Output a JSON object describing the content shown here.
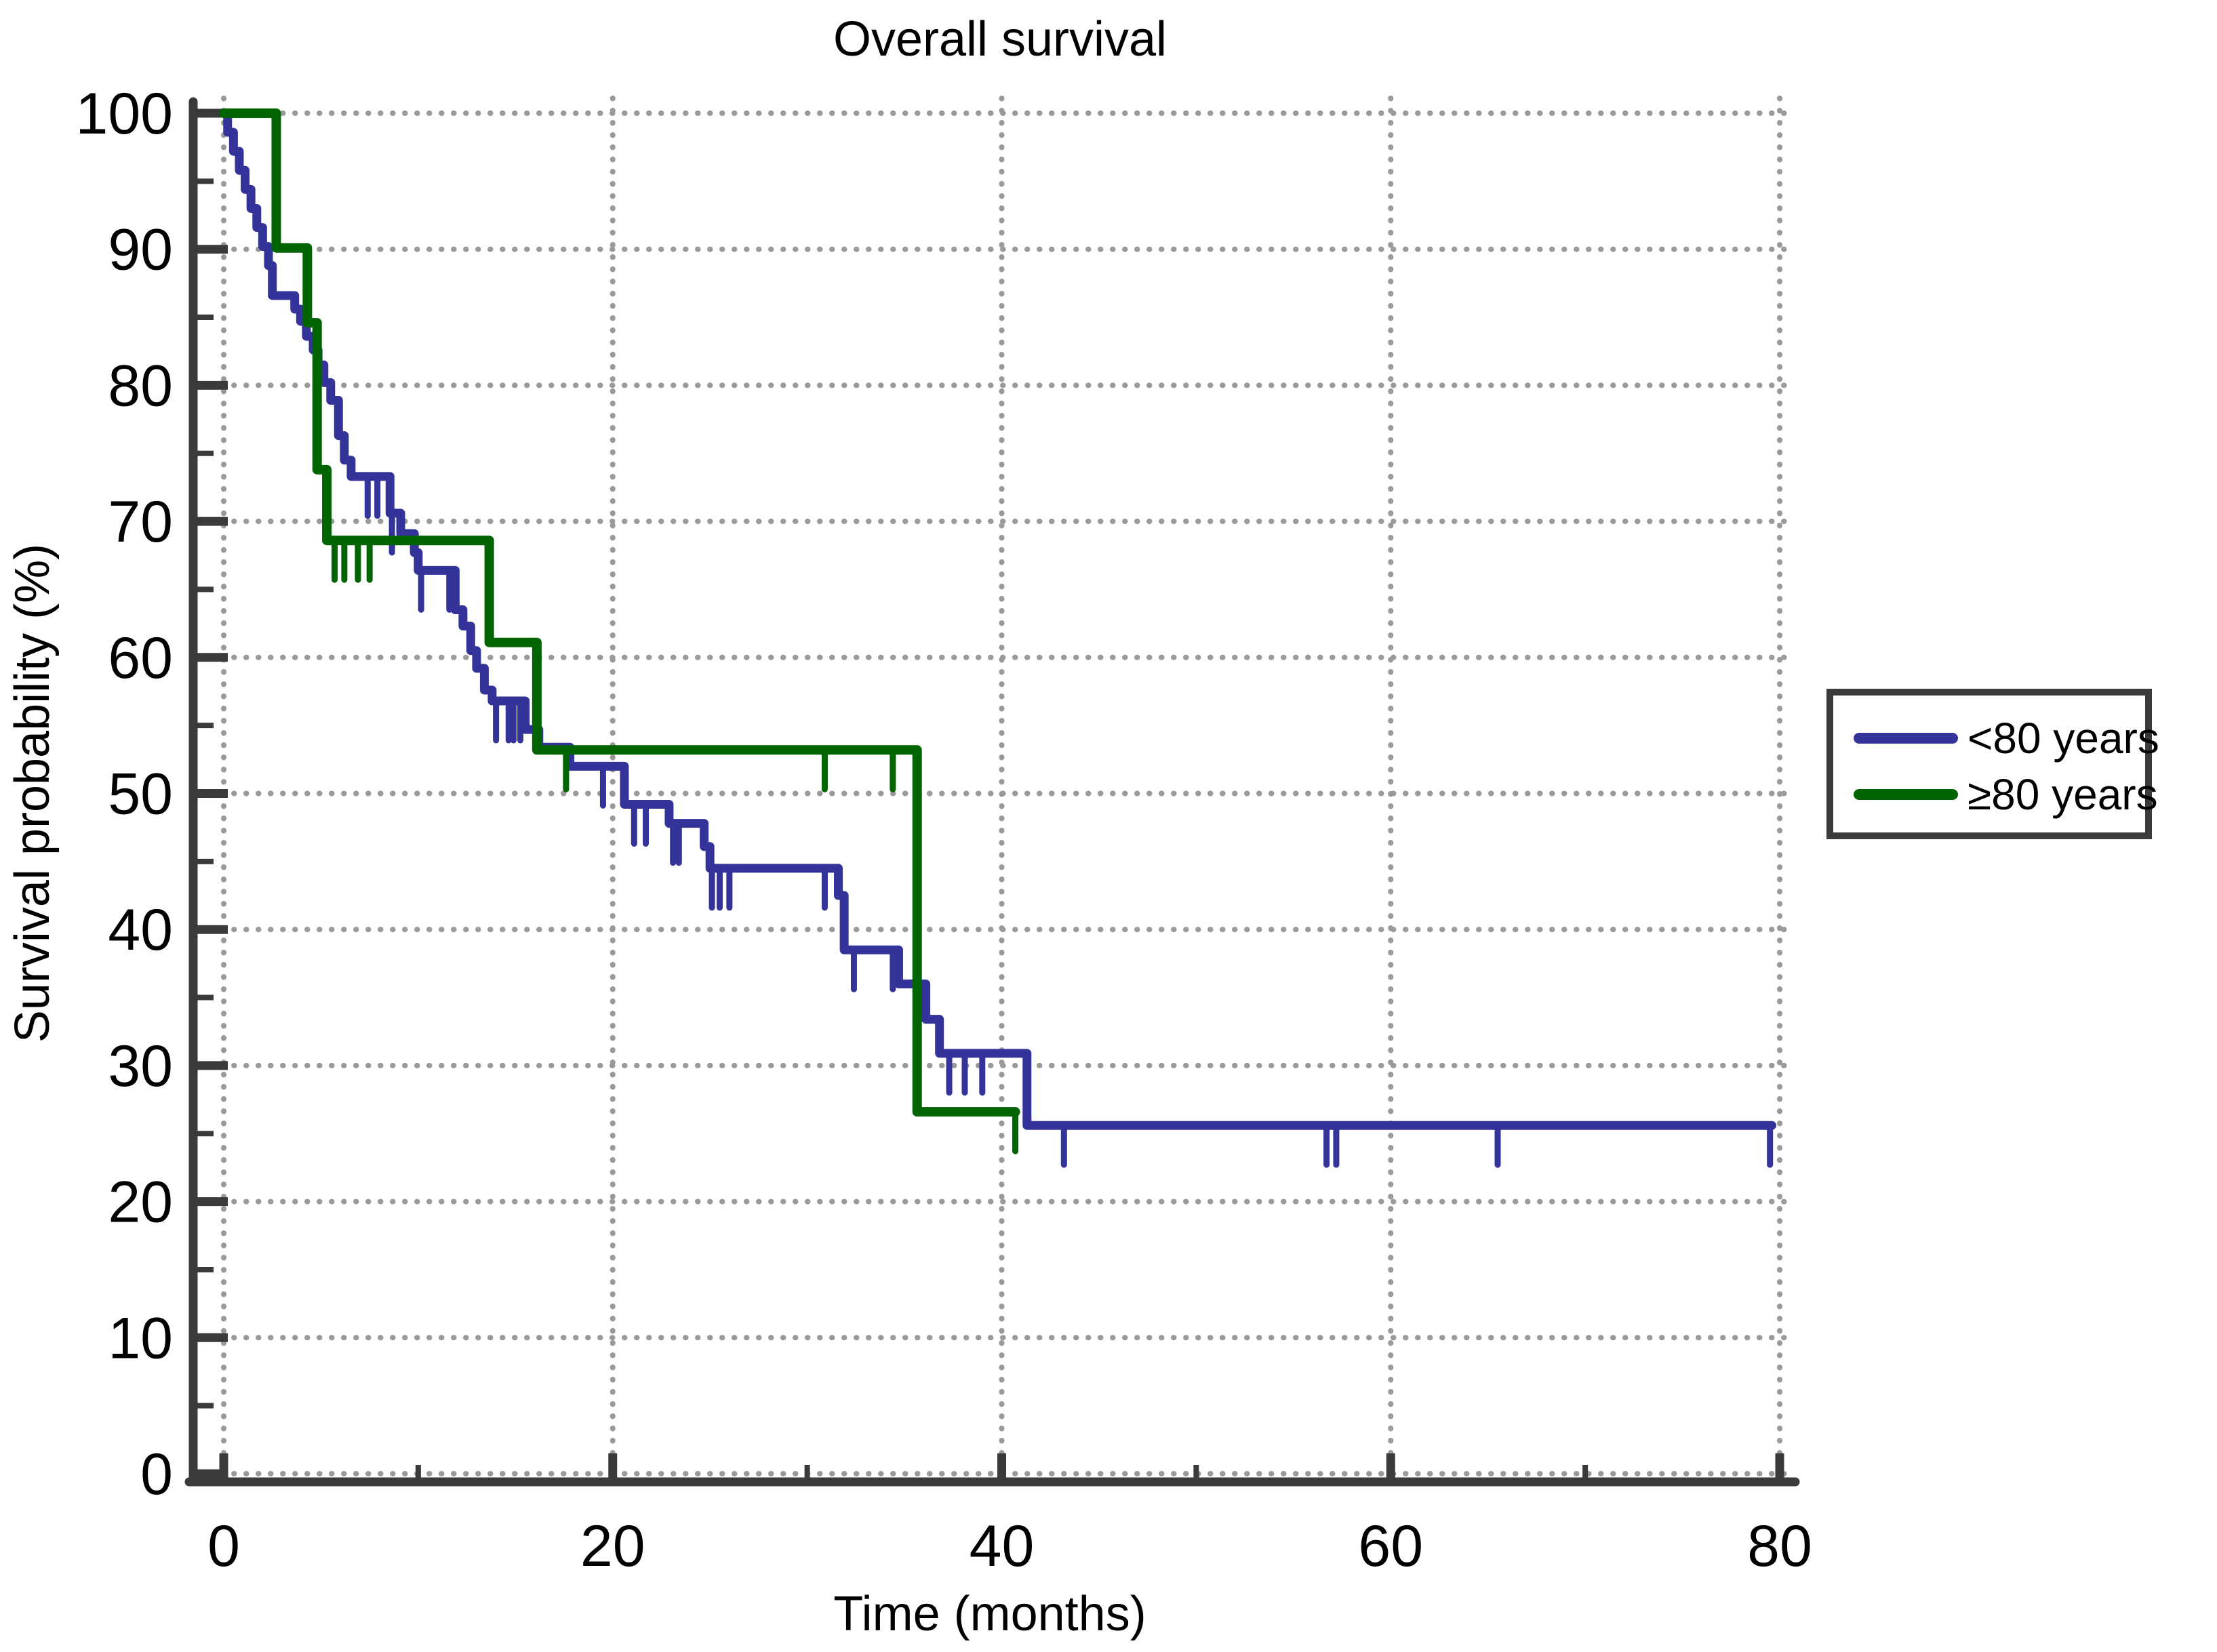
{
  "title": "Overall survival",
  "axes": {
    "x": {
      "label": "Time (months)",
      "min": 0,
      "max": 80,
      "major_ticks": [
        0,
        20,
        40,
        60,
        80
      ],
      "minor_ticks": [
        10,
        30,
        50,
        70
      ]
    },
    "y": {
      "label": "Survival probability (%)",
      "min": 0,
      "max": 100,
      "major_ticks": [
        100,
        90,
        80,
        70,
        60,
        50,
        40,
        30,
        20,
        10,
        0
      ],
      "minor_ticks": [
        95,
        85,
        75,
        65,
        55,
        45,
        35,
        25,
        15,
        5
      ]
    }
  },
  "legend": {
    "entries": [
      {
        "label": "<80 years",
        "color": "#333399"
      },
      {
        "label": "≥80 years",
        "color": "#006400"
      }
    ]
  },
  "colors": {
    "blue_series": "#333399",
    "green_series": "#006400",
    "axis": "#3a3a3a",
    "grid": "#9a9a9a",
    "legend_border": "#3a3a3a",
    "background": "#ffffff"
  },
  "chart_data": {
    "type": "line",
    "subtype": "kaplan-meier-step",
    "title": "Overall survival",
    "xlabel": "Time (months)",
    "ylabel": "Survival probability (%)",
    "xlim": [
      0,
      80
    ],
    "ylim": [
      0,
      100
    ],
    "grid": "dotted",
    "legend_position": "right",
    "series": [
      {
        "name": "<80 years",
        "color": "#333399",
        "steps": [
          [
            0,
            100
          ],
          [
            0.2,
            98.6
          ],
          [
            0.5,
            97.2
          ],
          [
            0.8,
            95.8
          ],
          [
            1.1,
            94.4
          ],
          [
            1.4,
            93.0
          ],
          [
            1.7,
            91.6
          ],
          [
            2.0,
            90.2
          ],
          [
            2.3,
            88.8
          ],
          [
            2.5,
            86.6
          ],
          [
            3.65,
            85.6
          ],
          [
            3.95,
            84.7
          ],
          [
            4.25,
            83.6
          ],
          [
            4.6,
            82.6
          ],
          [
            4.85,
            81.5
          ],
          [
            5.15,
            80.2
          ],
          [
            5.5,
            78.9
          ],
          [
            5.9,
            76.3
          ],
          [
            6.2,
            74.5
          ],
          [
            6.55,
            73.3
          ],
          [
            8.55,
            70.6
          ],
          [
            9.1,
            69.1
          ],
          [
            9.8,
            67.7
          ],
          [
            10.0,
            66.4
          ],
          [
            11.9,
            63.5
          ],
          [
            12.3,
            62.3
          ],
          [
            12.7,
            60.5
          ],
          [
            13.0,
            59.2
          ],
          [
            13.4,
            57.6
          ],
          [
            13.8,
            56.8
          ],
          [
            15.5,
            54.7
          ],
          [
            16.2,
            53.4
          ],
          [
            17.8,
            52.0
          ],
          [
            20.6,
            49.2
          ],
          [
            22.9,
            47.8
          ],
          [
            24.7,
            46.1
          ],
          [
            25.0,
            44.5
          ],
          [
            31.6,
            42.5
          ],
          [
            31.9,
            38.5
          ],
          [
            34.7,
            36.0
          ],
          [
            36.1,
            33.4
          ],
          [
            36.8,
            30.9
          ],
          [
            41.3,
            25.6
          ]
        ],
        "end_time": 79.6,
        "censor_marks": [
          [
            7.4,
            73.3
          ],
          [
            7.9,
            73.3
          ],
          [
            8.65,
            70.6
          ],
          [
            10.15,
            66.4
          ],
          [
            11.6,
            66.4
          ],
          [
            14.0,
            56.8
          ],
          [
            14.65,
            56.8
          ],
          [
            14.9,
            56.8
          ],
          [
            15.25,
            56.8
          ],
          [
            19.5,
            52.0
          ],
          [
            21.1,
            49.2
          ],
          [
            21.7,
            49.2
          ],
          [
            23.1,
            47.8
          ],
          [
            23.4,
            47.8
          ],
          [
            25.1,
            44.5
          ],
          [
            25.5,
            44.5
          ],
          [
            26.0,
            44.5
          ],
          [
            30.9,
            44.5
          ],
          [
            32.4,
            38.5
          ],
          [
            34.4,
            38.5
          ],
          [
            37.3,
            30.9
          ],
          [
            38.1,
            30.9
          ],
          [
            39.0,
            30.9
          ],
          [
            43.2,
            25.6
          ],
          [
            56.7,
            25.6
          ],
          [
            57.2,
            25.6
          ],
          [
            65.5,
            25.6
          ],
          [
            79.5,
            25.6
          ]
        ]
      },
      {
        "name": "≥80 years",
        "color": "#006400",
        "steps": [
          [
            0,
            100
          ],
          [
            2.7,
            90.1
          ],
          [
            4.3,
            84.6
          ],
          [
            4.8,
            73.8
          ],
          [
            5.3,
            68.6
          ],
          [
            13.65,
            61.1
          ],
          [
            16.1,
            53.2
          ],
          [
            35.65,
            26.6
          ]
        ],
        "end_time": 40.7,
        "censor_marks": [
          [
            5.7,
            68.6
          ],
          [
            6.2,
            68.6
          ],
          [
            6.9,
            68.6
          ],
          [
            7.5,
            68.6
          ],
          [
            17.6,
            53.2
          ],
          [
            30.9,
            53.2
          ],
          [
            34.4,
            53.2
          ],
          [
            40.7,
            26.6
          ]
        ]
      }
    ]
  }
}
